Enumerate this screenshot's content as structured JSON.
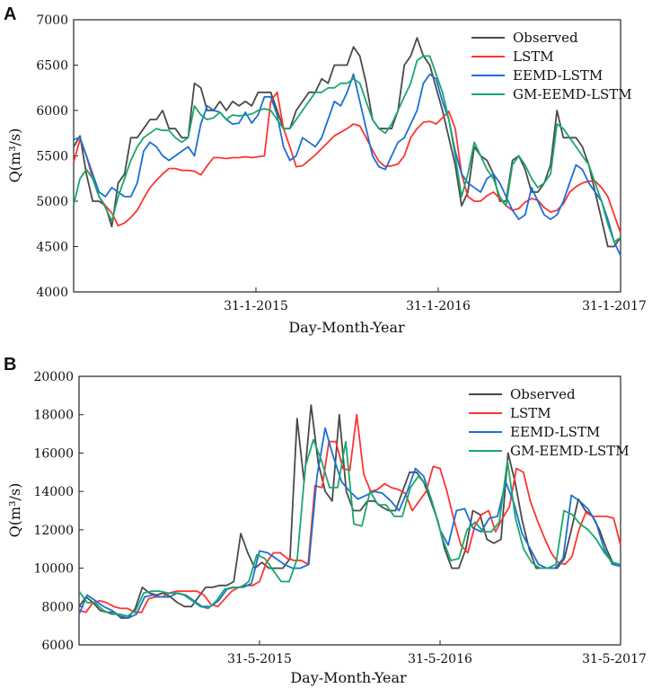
{
  "colors": {
    "Observed": "#4a4a4a",
    "LSTM": "#ff3333",
    "EEMD-LSTM": "#1a6fd6",
    "GM-EEMD-LSTM": "#1aa86a"
  },
  "chart_data": [
    {
      "panel": "A",
      "type": "line",
      "xlabel": "Day-Month-Year",
      "ylabel": "Q(m³/s)",
      "ylim": [
        4000,
        7000
      ],
      "yticks": [
        4000,
        4500,
        5000,
        5500,
        6000,
        6500,
        7000
      ],
      "x_range": [
        0,
        36
      ],
      "xticks": [
        {
          "pos": 12,
          "label": "31-1-2015"
        },
        {
          "pos": 24,
          "label": "31-1-2016"
        },
        {
          "pos": 36,
          "label": "31-1-2017"
        }
      ],
      "legend_position": "top-right",
      "series": [
        {
          "name": "Observed",
          "values": [
            5600,
            5720,
            5300,
            5000,
            5000,
            4950,
            4720,
            5200,
            5300,
            5700,
            5700,
            5800,
            5900,
            5900,
            6000,
            5800,
            5800,
            5700,
            5700,
            6300,
            6250,
            6000,
            6000,
            6100,
            6000,
            6100,
            6050,
            6100,
            6050,
            6200,
            6200,
            6200,
            6000,
            5800,
            5800,
            6000,
            6100,
            6200,
            6200,
            6350,
            6300,
            6500,
            6500,
            6500,
            6700,
            6600,
            6300,
            5900,
            5800,
            5800,
            5800,
            6000,
            6500,
            6600,
            6800,
            6600,
            6500,
            6250,
            6000,
            5700,
            5400,
            4950,
            5100,
            5600,
            5500,
            5450,
            5300,
            5000,
            5000,
            5450,
            5500,
            5350,
            5100,
            5100,
            5200,
            5400,
            6000,
            5700,
            5700,
            5700,
            5600,
            5400,
            5100,
            4800,
            4500,
            4500,
            4600
          ]
        },
        {
          "name": "LSTM",
          "values": [
            5430,
            5680,
            5500,
            5250,
            5050,
            4950,
            4870,
            4730,
            4760,
            4820,
            4900,
            5030,
            5150,
            5230,
            5300,
            5360,
            5360,
            5340,
            5340,
            5330,
            5290,
            5390,
            5480,
            5480,
            5470,
            5480,
            5480,
            5490,
            5480,
            5490,
            5500,
            6100,
            6200,
            5800,
            5600,
            5380,
            5390,
            5450,
            5510,
            5580,
            5650,
            5720,
            5760,
            5800,
            5850,
            5830,
            5700,
            5560,
            5440,
            5380,
            5390,
            5410,
            5500,
            5700,
            5800,
            5870,
            5880,
            5850,
            5920,
            5990,
            5800,
            5300,
            5050,
            5000,
            5000,
            5060,
            5100,
            5030,
            4950,
            4900,
            4920,
            4990,
            5030,
            5010,
            4930,
            4880,
            4900,
            4970,
            5100,
            5160,
            5200,
            5220,
            5220,
            5150,
            5050,
            4850,
            4650
          ]
        },
        {
          "name": "EEMD-LSTM",
          "values": [
            5680,
            5700,
            5500,
            5300,
            5100,
            5050,
            5150,
            5100,
            5050,
            5050,
            5200,
            5550,
            5650,
            5600,
            5500,
            5450,
            5500,
            5550,
            5600,
            5500,
            5850,
            6050,
            6000,
            5980,
            5900,
            5850,
            5860,
            5980,
            5860,
            5950,
            6150,
            6150,
            5950,
            5600,
            5450,
            5500,
            5700,
            5650,
            5600,
            5700,
            5900,
            6100,
            6050,
            6200,
            6400,
            6100,
            5800,
            5500,
            5380,
            5350,
            5500,
            5650,
            5700,
            5850,
            6000,
            6300,
            6400,
            6350,
            6100,
            5900,
            5550,
            5300,
            5200,
            5150,
            5100,
            5250,
            5300,
            5200,
            5050,
            4900,
            4800,
            4850,
            5150,
            5000,
            4850,
            4800,
            4850,
            5000,
            5200,
            5400,
            5350,
            5200,
            5100,
            5000,
            4800,
            4550,
            4400
          ]
        },
        {
          "name": "GM-EEMD-LSTM",
          "values": [
            4960,
            5250,
            5350,
            5250,
            5050,
            4930,
            4780,
            5050,
            5250,
            5450,
            5600,
            5700,
            5750,
            5800,
            5780,
            5780,
            5700,
            5650,
            5700,
            6050,
            5950,
            5900,
            5920,
            5980,
            5900,
            5950,
            5940,
            5950,
            5960,
            6000,
            6020,
            6000,
            5900,
            5800,
            5800,
            5900,
            6000,
            6100,
            6200,
            6200,
            6250,
            6250,
            6300,
            6300,
            6350,
            6300,
            6100,
            5900,
            5800,
            5750,
            5850,
            6000,
            6150,
            6300,
            6550,
            6600,
            6600,
            6400,
            6200,
            5900,
            5500,
            5050,
            5300,
            5650,
            5500,
            5350,
            5250,
            5050,
            4950,
            5400,
            5500,
            5400,
            5250,
            5150,
            5200,
            5300,
            5850,
            5800,
            5700,
            5600,
            5500,
            5400,
            5200,
            5000,
            4750,
            4550,
            4600
          ]
        }
      ]
    },
    {
      "panel": "B",
      "type": "line",
      "xlabel": "Day-Month-Year",
      "ylabel": "Q(m³/s)",
      "ylim": [
        6000,
        20000
      ],
      "yticks": [
        6000,
        8000,
        10000,
        12000,
        14000,
        16000,
        18000,
        20000
      ],
      "x_range": [
        0,
        36
      ],
      "xticks": [
        {
          "pos": 12,
          "label": "31-5-2015"
        },
        {
          "pos": 24,
          "label": "31-5-2016"
        },
        {
          "pos": 36,
          "label": "31-5-2017"
        }
      ],
      "legend_position": "top-right",
      "series": [
        {
          "name": "Observed",
          "values": [
            8000,
            8500,
            8200,
            7800,
            7700,
            7700,
            7400,
            7400,
            7900,
            9000,
            8700,
            8600,
            8700,
            8500,
            8200,
            8000,
            8000,
            8500,
            9000,
            9000,
            9100,
            9100,
            9300,
            11800,
            10800,
            10000,
            10300,
            10000,
            10000,
            10000,
            10500,
            17800,
            14500,
            18500,
            15500,
            14000,
            13500,
            18000,
            14000,
            13000,
            13000,
            13500,
            13500,
            13200,
            13000,
            13000,
            14000,
            15000,
            15000,
            14500,
            13500,
            12500,
            11000,
            10000,
            10000,
            11000,
            13000,
            12800,
            11500,
            11300,
            11500,
            16000,
            14500,
            12500,
            11000,
            10000,
            10000,
            10000,
            10000,
            10500,
            12000,
            13600,
            13000,
            12700,
            12000,
            11000,
            10200,
            10100
          ]
        },
        {
          "name": "LSTM",
          "values": [
            7800,
            7700,
            8200,
            8300,
            8200,
            8000,
            7900,
            7900,
            7700,
            7700,
            8400,
            8500,
            8500,
            8700,
            8800,
            8800,
            8800,
            8800,
            8600,
            8100,
            8000,
            8400,
            8800,
            9000,
            9100,
            9100,
            9300,
            10300,
            10800,
            10800,
            10500,
            10400,
            10400,
            10200,
            14300,
            14200,
            16600,
            16600,
            15200,
            15100,
            18000,
            14900,
            14000,
            14100,
            14400,
            14200,
            14100,
            13900,
            13000,
            13500,
            14000,
            15300,
            15200,
            14000,
            12500,
            11200,
            10800,
            12200,
            12800,
            13000,
            11900,
            12600,
            13200,
            15200,
            15000,
            13500,
            12500,
            11600,
            10800,
            10300,
            10200,
            10600,
            12000,
            12900,
            12700,
            12700,
            12700,
            12600,
            11200
          ]
        },
        {
          "name": "EEMD-LSTM",
          "values": [
            7600,
            8600,
            8300,
            8000,
            7800,
            7500,
            7400,
            7600,
            8500,
            8600,
            8500,
            8500,
            8700,
            8600,
            8300,
            8000,
            8000,
            8300,
            8900,
            9000,
            9000,
            9200,
            10900,
            10800,
            10500,
            10200,
            10000,
            10000,
            10200,
            14800,
            17300,
            15800,
            14500,
            14000,
            13600,
            13800,
            14000,
            13900,
            13500,
            13000,
            14000,
            15200,
            14800,
            13500,
            12000,
            11200,
            13000,
            13100,
            12100,
            11900,
            12600,
            12700,
            14500,
            13400,
            11800,
            11000,
            10200,
            10000,
            10000,
            10500,
            13800,
            13500,
            13100,
            12400,
            11000,
            10200,
            10100
          ]
        },
        {
          "name": "GM-EEMD-LSTM",
          "values": [
            8800,
            8200,
            8200,
            7800,
            7600,
            7600,
            7500,
            7800,
            8700,
            8800,
            8800,
            8700,
            8700,
            8600,
            8300,
            8000,
            7900,
            8300,
            8900,
            9000,
            9000,
            9300,
            10700,
            10500,
            9900,
            9300,
            9300,
            10500,
            15300,
            16700,
            15600,
            14200,
            14200,
            16600,
            12300,
            12200,
            14000,
            13300,
            13300,
            12700,
            12700,
            14200,
            14800,
            14300,
            13000,
            11500,
            10400,
            10500,
            12000,
            12400,
            11900,
            11900,
            12400,
            15600,
            12600,
            11000,
            10300,
            10000,
            10000,
            10200,
            13000,
            12800,
            12300,
            12000,
            11500,
            10800,
            10300,
            10200
          ]
        }
      ]
    }
  ]
}
